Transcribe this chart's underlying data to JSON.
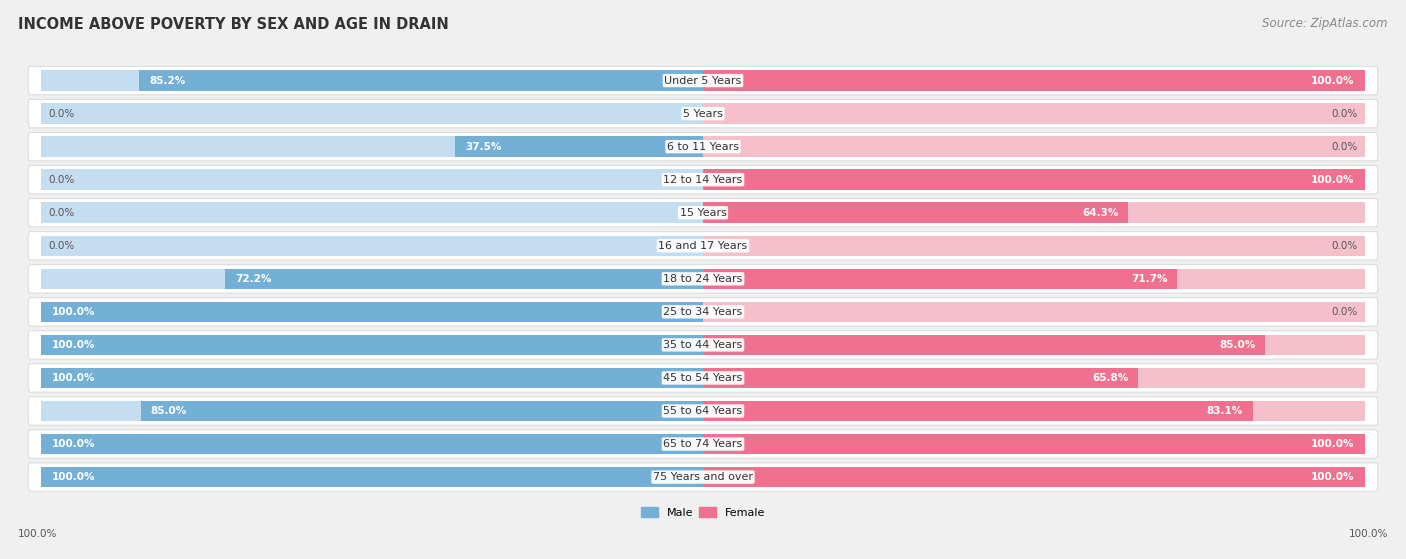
{
  "title": "INCOME ABOVE POVERTY BY SEX AND AGE IN DRAIN",
  "source": "Source: ZipAtlas.com",
  "categories": [
    "Under 5 Years",
    "5 Years",
    "6 to 11 Years",
    "12 to 14 Years",
    "15 Years",
    "16 and 17 Years",
    "18 to 24 Years",
    "25 to 34 Years",
    "35 to 44 Years",
    "45 to 54 Years",
    "55 to 64 Years",
    "65 to 74 Years",
    "75 Years and over"
  ],
  "male_values": [
    85.2,
    0.0,
    37.5,
    0.0,
    0.0,
    0.0,
    72.2,
    100.0,
    100.0,
    100.0,
    85.0,
    100.0,
    100.0
  ],
  "female_values": [
    100.0,
    0.0,
    0.0,
    100.0,
    64.3,
    0.0,
    71.7,
    0.0,
    85.0,
    65.8,
    83.1,
    100.0,
    100.0
  ],
  "male_color": "#74afd6",
  "female_color": "#f07090",
  "male_bg_color": "#c5ddf0",
  "female_bg_color": "#f5c0cc",
  "male_label": "Male",
  "female_label": "Female",
  "bg_color": "#f0f0f0",
  "row_bg_color": "#ffffff",
  "row_border_color": "#dddddd",
  "title_fontsize": 10.5,
  "source_fontsize": 8.5,
  "label_fontsize": 8,
  "bar_label_fontsize": 7.5,
  "bottom_label": "100.0%",
  "bar_max": 100
}
